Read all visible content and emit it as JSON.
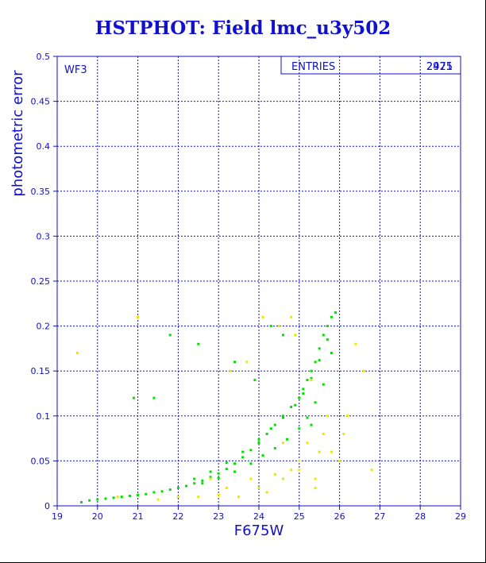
{
  "chart_data": {
    "type": "scatter",
    "title": "HSTPHOT: Field lmc_u3y502",
    "xlabel": "F675W",
    "ylabel": "photometric error",
    "xlim": [
      19,
      29
    ],
    "ylim": [
      0,
      0.5
    ],
    "x_ticks": [
      "19",
      "20",
      "21",
      "22",
      "23",
      "24",
      "25",
      "26",
      "27",
      "28",
      "29"
    ],
    "y_ticks": [
      "0",
      "0.05",
      "0.1",
      "0.15",
      "0.2",
      "0.25",
      "0.3",
      "0.35",
      "0.4",
      "0.45",
      "0.5"
    ],
    "grid": true,
    "chip_label": "WF3",
    "stats_box": {
      "label": "ENTRIES",
      "values": [
        "2925",
        "2471"
      ]
    },
    "colors": {
      "axes": "#1010c8",
      "title": "#1010d0",
      "series_green": "#00e000",
      "series_yellow": "#e8e800"
    },
    "series": [
      {
        "color": "green",
        "x": [
          19.6,
          19.8,
          20.0,
          20.2,
          20.4,
          20.6,
          20.8,
          21.0,
          21.2,
          21.4,
          21.6,
          21.8,
          22.0,
          22.2,
          22.4,
          22.6,
          22.8,
          23.0,
          23.2,
          23.4,
          23.6,
          23.8,
          24.0,
          24.2,
          24.4,
          24.6,
          24.8,
          25.0,
          25.1,
          25.2,
          25.3,
          25.4,
          25.5,
          25.6,
          25.7,
          25.8,
          25.9,
          22.4,
          22.8,
          23.2,
          23.6,
          24.0,
          24.3,
          24.6,
          24.9,
          25.1,
          25.3,
          25.5,
          25.7,
          22.6,
          23.0,
          23.4,
          23.8,
          24.1,
          24.4,
          24.7,
          25.0,
          25.2,
          25.4,
          25.6,
          25.8,
          20.9,
          21.4,
          21.8,
          22.5,
          23.4,
          23.9,
          24.3,
          24.6,
          25.0,
          25.3
        ],
        "y": [
          0.004,
          0.006,
          0.007,
          0.008,
          0.009,
          0.01,
          0.011,
          0.012,
          0.013,
          0.015,
          0.016,
          0.018,
          0.02,
          0.022,
          0.025,
          0.028,
          0.032,
          0.036,
          0.041,
          0.047,
          0.054,
          0.062,
          0.07,
          0.08,
          0.09,
          0.1,
          0.11,
          0.12,
          0.13,
          0.14,
          0.15,
          0.16,
          0.175,
          0.19,
          0.2,
          0.21,
          0.215,
          0.03,
          0.038,
          0.048,
          0.06,
          0.074,
          0.086,
          0.098,
          0.112,
          0.125,
          0.142,
          0.162,
          0.185,
          0.025,
          0.031,
          0.038,
          0.047,
          0.056,
          0.064,
          0.074,
          0.086,
          0.098,
          0.115,
          0.135,
          0.17,
          0.12,
          0.12,
          0.19,
          0.18,
          0.16,
          0.14,
          0.2,
          0.19,
          0.12,
          0.09
        ]
      },
      {
        "color": "yellow",
        "x": [
          19.5,
          20.5,
          21.0,
          21.5,
          22.0,
          22.5,
          23.0,
          23.2,
          23.5,
          23.8,
          24.0,
          24.2,
          24.4,
          24.6,
          24.8,
          25.0,
          25.2,
          25.4,
          25.6,
          25.8,
          26.0,
          26.2,
          26.4,
          26.6,
          26.8,
          23.3,
          23.7,
          24.1,
          24.5,
          24.9,
          25.3,
          25.7,
          26.1,
          24.6,
          25.0,
          25.4,
          22.8,
          24.8,
          25.5
        ],
        "y": [
          0.17,
          0.01,
          0.21,
          0.007,
          0.01,
          0.01,
          0.012,
          0.02,
          0.01,
          0.03,
          0.02,
          0.015,
          0.035,
          0.03,
          0.04,
          0.05,
          0.07,
          0.03,
          0.08,
          0.06,
          0.05,
          0.1,
          0.18,
          0.15,
          0.04,
          0.15,
          0.16,
          0.21,
          0.2,
          0.19,
          0.14,
          0.1,
          0.08,
          0.07,
          0.04,
          0.02,
          0.03,
          0.21,
          0.06
        ]
      }
    ]
  }
}
